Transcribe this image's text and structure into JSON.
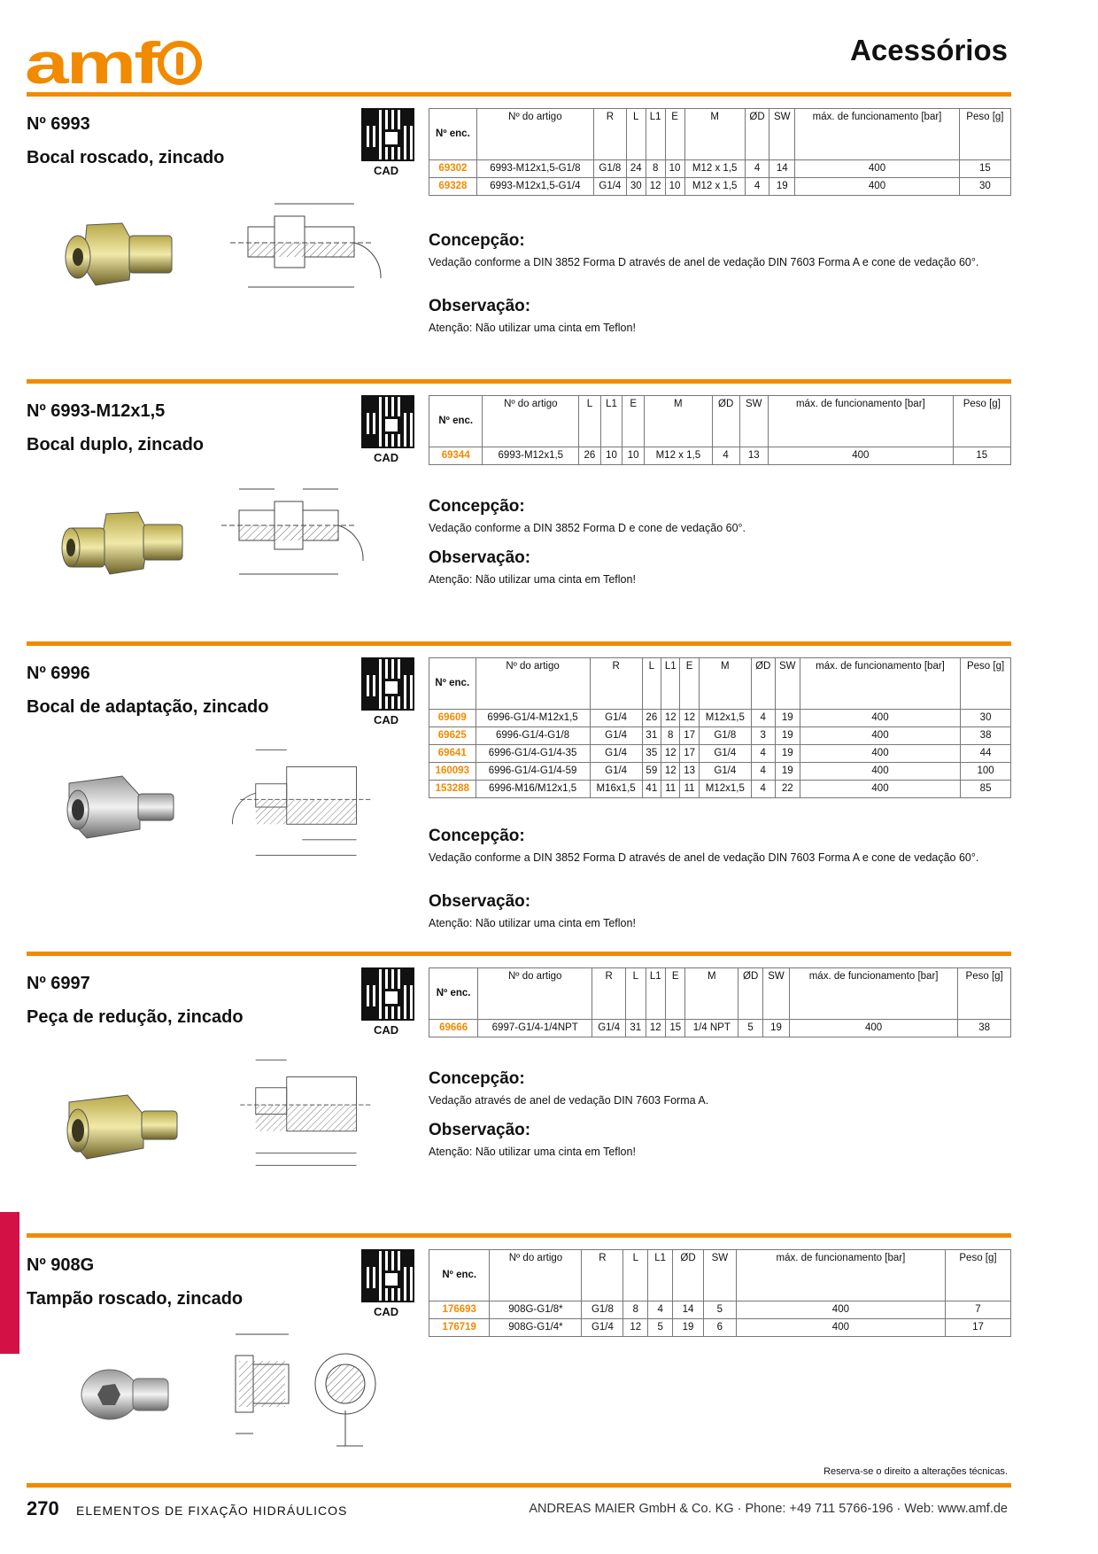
{
  "header": {
    "logo_text": "amf",
    "title": "Acessórios"
  },
  "sections": [
    {
      "number": "Nº 6993",
      "name": "Bocal roscado, zincado",
      "cad": "CAD",
      "headers": [
        "Nº enc.",
        "Nº do artigo",
        "R",
        "L",
        "L1",
        "E",
        "M",
        "ØD",
        "SW",
        "máx. de funcionamento [bar]",
        "Peso [g]"
      ],
      "rows": [
        [
          "69302",
          "6993-M12x1,5-G1/8",
          "G1/8",
          "24",
          "8",
          "10",
          "M12 x 1,5",
          "4",
          "14",
          "400",
          "15"
        ],
        [
          "69328",
          "6993-M12x1,5-G1/4",
          "G1/4",
          "30",
          "12",
          "10",
          "M12 x 1,5",
          "4",
          "19",
          "400",
          "30"
        ]
      ],
      "concepcao_title": "Concepção:",
      "concepcao": "Vedação conforme a DIN 3852 Forma D através de anel de vedação DIN 7603 Forma A e cone de vedação 60°.",
      "observacao_title": "Observação:",
      "observacao": "Atenção: Não utilizar uma cinta em Teflon!"
    },
    {
      "number": "Nº 6993-M12x1,5",
      "name": "Bocal duplo, zincado",
      "cad": "CAD",
      "headers": [
        "Nº enc.",
        "Nº do artigo",
        "L",
        "L1",
        "E",
        "M",
        "ØD",
        "SW",
        "máx. de funcionamento [bar]",
        "Peso [g]"
      ],
      "rows": [
        [
          "69344",
          "6993-M12x1,5",
          "26",
          "10",
          "10",
          "M12 x 1,5",
          "4",
          "13",
          "400",
          "15"
        ]
      ],
      "concepcao_title": "Concepção:",
      "concepcao": "Vedação conforme a DIN 3852 Forma D e cone de vedação 60°.",
      "observacao_title": "Observação:",
      "observacao": "Atenção: Não utilizar uma cinta em Teflon!"
    },
    {
      "number": "Nº 6996",
      "name": "Bocal de adaptação, zincado",
      "cad": "CAD",
      "headers": [
        "Nº enc.",
        "Nº do artigo",
        "R",
        "L",
        "L1",
        "E",
        "M",
        "ØD",
        "SW",
        "máx. de funcionamento [bar]",
        "Peso [g]"
      ],
      "rows": [
        [
          "69609",
          "6996-G1/4-M12x1,5",
          "G1/4",
          "26",
          "12",
          "12",
          "M12x1,5",
          "4",
          "19",
          "400",
          "30"
        ],
        [
          "69625",
          "6996-G1/4-G1/8",
          "G1/4",
          "31",
          "8",
          "17",
          "G1/8",
          "3",
          "19",
          "400",
          "38"
        ],
        [
          "69641",
          "6996-G1/4-G1/4-35",
          "G1/4",
          "35",
          "12",
          "17",
          "G1/4",
          "4",
          "19",
          "400",
          "44"
        ],
        [
          "160093",
          "6996-G1/4-G1/4-59",
          "G1/4",
          "59",
          "12",
          "13",
          "G1/4",
          "4",
          "19",
          "400",
          "100"
        ],
        [
          "153288",
          "6996-M16/M12x1,5",
          "M16x1,5",
          "41",
          "11",
          "11",
          "M12x1,5",
          "4",
          "22",
          "400",
          "85"
        ]
      ],
      "concepcao_title": "Concepção:",
      "concepcao": "Vedação conforme a DIN 3852 Forma D através de anel de vedação DIN 7603 Forma A e cone de vedação 60°.",
      "observacao_title": "Observação:",
      "observacao": "Atenção: Não utilizar uma cinta em Teflon!"
    },
    {
      "number": "Nº 6997",
      "name": "Peça de redução, zincado",
      "cad": "CAD",
      "headers": [
        "Nº enc.",
        "Nº do artigo",
        "R",
        "L",
        "L1",
        "E",
        "M",
        "ØD",
        "SW",
        "máx. de funcionamento [bar]",
        "Peso [g]"
      ],
      "rows": [
        [
          "69666",
          "6997-G1/4-1/4NPT",
          "G1/4",
          "31",
          "12",
          "15",
          "1/4 NPT",
          "5",
          "19",
          "400",
          "38"
        ]
      ],
      "concepcao_title": "Concepção:",
      "concepcao": "Vedação através de anel de vedação DIN 7603 Forma A.",
      "observacao_title": "Observação:",
      "observacao": "Atenção: Não utilizar uma cinta em Teflon!"
    },
    {
      "number": "Nº 908G",
      "name": "Tampão roscado, zincado",
      "cad": "CAD",
      "headers": [
        "Nº enc.",
        "Nº do artigo",
        "R",
        "L",
        "L1",
        "ØD",
        "SW",
        "máx. de funcionamento [bar]",
        "Peso [g]"
      ],
      "rows": [
        [
          "176693",
          "908G-G1/8*",
          "G1/8",
          "8",
          "4",
          "14",
          "5",
          "400",
          "7"
        ],
        [
          "176719",
          "908G-G1/4*",
          "G1/4",
          "12",
          "5",
          "19",
          "6",
          "400",
          "17"
        ]
      ]
    }
  ],
  "footer": {
    "reserve": "Reserva-se o direito a alterações técnicas.",
    "page": "270",
    "title": "ELEMENTOS DE FIXAÇÃO HIDRÁULICOS",
    "company": "ANDREAS MAIER GmbH & Co. KG · Phone: +49 711 5766-196 · Web: www.amf.de"
  },
  "colors": {
    "accent": "#f28a00",
    "side_tab": "#d31145"
  }
}
